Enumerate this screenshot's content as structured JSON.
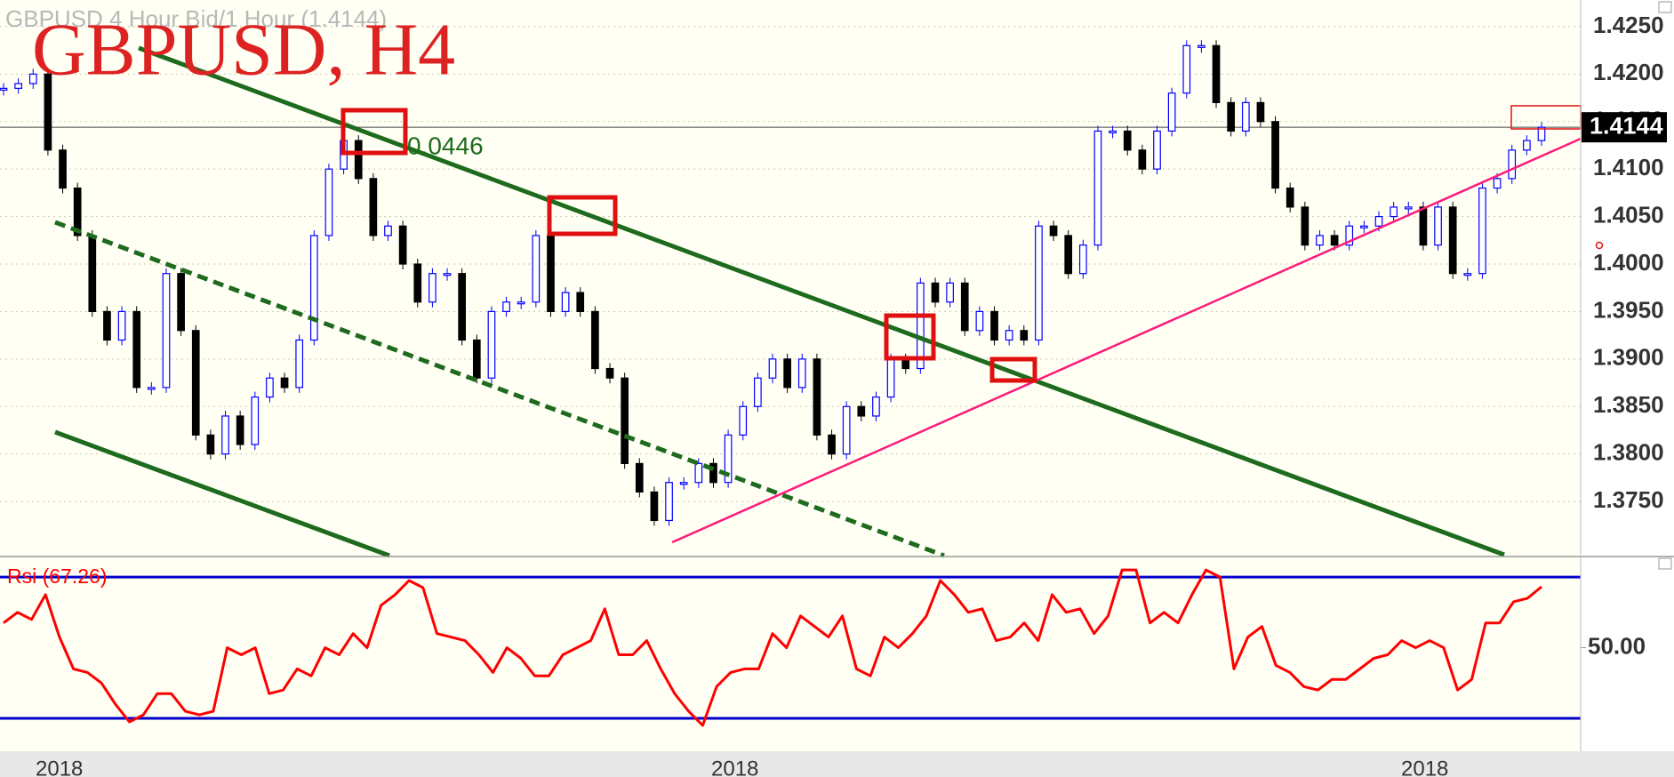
{
  "chart_data": [
    {
      "type": "candlestick",
      "title": "GBPUSD 4 Hour Bid/1 Hour (1.4144)",
      "annotation": "GBPUSD, H4",
      "measure_label": "0.0446",
      "last_price": 1.4144,
      "up_color": "#0000ff",
      "down_color": "#000000",
      "values": [
        1.4185,
        1.419,
        1.42,
        1.412,
        1.408,
        1.403,
        1.395,
        1.392,
        1.395,
        1.387,
        1.387,
        1.399,
        1.393,
        1.382,
        1.38,
        1.384,
        1.381,
        1.386,
        1.388,
        1.387,
        1.392,
        1.403,
        1.41,
        1.413,
        1.409,
        1.403,
        1.404,
        1.4,
        1.396,
        1.399,
        1.399,
        1.392,
        1.388,
        1.395,
        1.396,
        1.396,
        1.403,
        1.395,
        1.397,
        1.395,
        1.389,
        1.388,
        1.379,
        1.376,
        1.373,
        1.377,
        1.377,
        1.379,
        1.377,
        1.382,
        1.385,
        1.388,
        1.39,
        1.387,
        1.39,
        1.382,
        1.38,
        1.385,
        1.384,
        1.386,
        1.39,
        1.389,
        1.398,
        1.396,
        1.398,
        1.393,
        1.395,
        1.392,
        1.393,
        1.392,
        1.404,
        1.403,
        1.399,
        1.402,
        1.414,
        1.414,
        1.412,
        1.41,
        1.414,
        1.418,
        1.423,
        1.423,
        1.417,
        1.414,
        1.417,
        1.415,
        1.408,
        1.406,
        1.402,
        1.403,
        1.402,
        1.404,
        1.404,
        1.405,
        1.406,
        1.406,
        1.402,
        1.406,
        1.399,
        1.399,
        1.408,
        1.409,
        1.412,
        1.413,
        1.4144
      ],
      "ylim": [
        1.3693,
        1.4278
      ],
      "yticks": [
        {
          "value": 1.375,
          "label": "1.3750"
        },
        {
          "value": 1.38,
          "label": "1.3800"
        },
        {
          "value": 1.385,
          "label": "1.3850"
        },
        {
          "value": 1.39,
          "label": "1.3900"
        },
        {
          "value": 1.395,
          "label": "1.3950"
        },
        {
          "value": 1.4,
          "label": "1.4000"
        },
        {
          "value": 1.405,
          "label": "1.4050"
        },
        {
          "value": 1.41,
          "label": "1.4100"
        },
        {
          "value": 1.415,
          "label": "1.4150"
        },
        {
          "value": 1.42,
          "label": "1.4200"
        },
        {
          "value": 1.425,
          "label": "1.4250"
        }
      ],
      "grid": true,
      "x_labels": [
        "2018",
        "2018",
        "2018"
      ]
    },
    {
      "type": "line",
      "title": "Rsi (67.26)",
      "color": "#ff0000",
      "values": [
        57,
        60,
        58,
        65,
        53,
        44,
        43,
        40,
        34,
        29,
        31,
        37,
        37,
        32,
        31,
        32,
        50,
        48,
        50,
        37,
        38,
        44,
        42,
        50,
        48,
        54,
        50,
        62,
        65,
        69,
        67,
        54,
        53,
        52,
        48,
        43,
        50,
        47,
        42,
        42,
        48,
        50,
        52,
        61,
        48,
        48,
        52,
        44,
        37,
        32,
        28,
        39,
        43,
        44,
        44,
        54,
        50,
        59,
        56,
        53,
        59,
        44,
        42,
        53,
        50,
        54,
        59,
        69,
        65,
        60,
        61,
        52,
        53,
        57,
        52,
        65,
        60,
        61,
        54,
        59,
        72,
        72,
        57,
        60,
        57,
        65,
        72,
        70,
        44,
        53,
        56,
        45,
        43,
        39,
        38,
        41,
        41,
        44,
        47,
        48,
        52,
        50,
        52,
        50,
        38,
        41,
        57,
        57,
        63,
        64,
        67.26
      ],
      "ylim": [
        20.7,
        75.3
      ],
      "yticks": [
        {
          "value": 50,
          "label": "50.00"
        }
      ],
      "levels": [
        30,
        70
      ],
      "level_color": "#0000cc"
    }
  ]
}
